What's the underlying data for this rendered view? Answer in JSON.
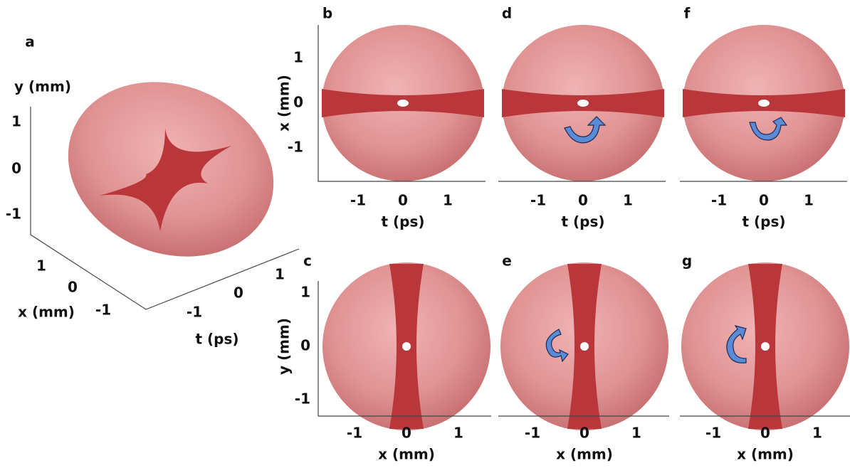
{
  "panel_a": {
    "label": "a",
    "y_axis": {
      "label": "y (mm)",
      "ticks": [
        "1",
        "0",
        "-1"
      ]
    },
    "x_axis": {
      "label": "x (mm)",
      "ticks": [
        "1",
        "0",
        "-1"
      ]
    },
    "t_axis": {
      "label": "t (ps)",
      "ticks": [
        "-1",
        "0",
        "1"
      ]
    }
  },
  "top_row": {
    "y_axis": {
      "label": "x (mm)",
      "ticks": [
        "1",
        "0",
        "-1"
      ]
    },
    "panels": [
      {
        "label": "b",
        "x_axis": {
          "label": "t (ps)",
          "ticks": [
            "-1",
            "0",
            "1"
          ]
        }
      },
      {
        "label": "d",
        "x_axis": {
          "label": "t (ps)",
          "ticks": [
            "-1",
            "0",
            "1"
          ]
        }
      },
      {
        "label": "f",
        "x_axis": {
          "label": "t (ps)",
          "ticks": [
            "-1",
            "0",
            "1"
          ]
        }
      }
    ]
  },
  "bottom_row": {
    "y_axis": {
      "label": "y (mm)",
      "ticks": [
        "1",
        "0",
        "-1"
      ]
    },
    "panels": [
      {
        "label": "c",
        "x_axis": {
          "label": "x (mm)",
          "ticks": [
            "-1",
            "0",
            "1"
          ]
        }
      },
      {
        "label": "e",
        "x_axis": {
          "label": "x (mm)",
          "ticks": [
            "-1",
            "0",
            "1"
          ]
        }
      },
      {
        "label": "g",
        "x_axis": {
          "label": "x (mm)",
          "ticks": [
            "-1",
            "0",
            "1"
          ]
        }
      }
    ]
  }
}
